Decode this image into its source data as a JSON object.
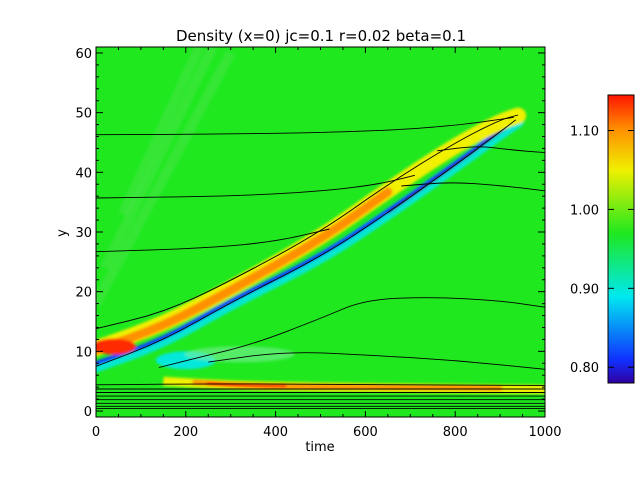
{
  "chart_data": {
    "type": "heatmap",
    "title": "Density (x=0) jc=0.1 r=0.02 beta=0.1",
    "xlabel": "time",
    "ylabel": "y",
    "xlim": [
      0,
      1000
    ],
    "ylim": [
      -1,
      61
    ],
    "x_ticks": [
      "0",
      "200",
      "400",
      "600",
      "800",
      "1000"
    ],
    "y_ticks": [
      "0",
      "10",
      "20",
      "30",
      "40",
      "50",
      "60"
    ],
    "colorbar": {
      "ticks": [
        "0.80",
        "0.90",
        "1.00",
        "1.10"
      ],
      "tick_values": [
        0.8,
        0.9,
        1.0,
        1.1
      ],
      "range": [
        0.78,
        1.145
      ]
    },
    "background_value": 1.0,
    "features": [
      {
        "name": "high-density-wave",
        "value": 1.1,
        "path": [
          [
            0,
            10.5
          ],
          [
            150,
            14.5
          ],
          [
            300,
            20.5
          ],
          [
            500,
            29
          ],
          [
            650,
            37
          ],
          [
            800,
            44.5
          ],
          [
            900,
            48.5
          ],
          [
            940,
            49.5
          ]
        ]
      },
      {
        "name": "low-density-wake",
        "value": 0.82,
        "path": [
          [
            0,
            8
          ],
          [
            150,
            12
          ],
          [
            300,
            18.5
          ],
          [
            500,
            26
          ],
          [
            650,
            33.5
          ],
          [
            800,
            41.5
          ],
          [
            900,
            47
          ],
          [
            940,
            49
          ]
        ]
      },
      {
        "name": "lower-high-density-band",
        "value": 1.1,
        "path": [
          [
            150,
            5
          ],
          [
            300,
            4.3
          ],
          [
            500,
            4
          ],
          [
            750,
            3.8
          ],
          [
            1000,
            3.6
          ]
        ]
      }
    ],
    "contour_lines": [
      {
        "points": [
          [
            0,
            46.3
          ],
          [
            300,
            46.4
          ],
          [
            600,
            46.8
          ],
          [
            800,
            47.8
          ],
          [
            930,
            49.2
          ]
        ]
      },
      {
        "points": [
          [
            0,
            35.7
          ],
          [
            300,
            36
          ],
          [
            500,
            36.8
          ],
          [
            630,
            38
          ],
          [
            710,
            39.5
          ]
        ]
      },
      {
        "points": [
          [
            0,
            26.7
          ],
          [
            250,
            27.3
          ],
          [
            400,
            28.4
          ],
          [
            520,
            30.5
          ]
        ]
      },
      {
        "points": [
          [
            680,
            37.7
          ],
          [
            790,
            38.4
          ],
          [
            900,
            37.8
          ],
          [
            1000,
            36.9
          ]
        ]
      },
      {
        "points": [
          [
            760,
            43.6
          ],
          [
            850,
            44.5
          ],
          [
            930,
            43.7
          ],
          [
            1000,
            43.3
          ]
        ]
      },
      {
        "points": [
          [
            140,
            7.3
          ],
          [
            230,
            9
          ],
          [
            350,
            11.2
          ],
          [
            500,
            15.5
          ],
          [
            600,
            18.7
          ],
          [
            750,
            19.1
          ],
          [
            900,
            18.5
          ],
          [
            1000,
            17.4
          ]
        ]
      },
      {
        "points": [
          [
            250,
            8.2
          ],
          [
            420,
            10
          ],
          [
            600,
            9.4
          ],
          [
            800,
            8.5
          ],
          [
            1000,
            7
          ]
        ]
      },
      {
        "points": [
          [
            0,
            13.8
          ],
          [
            150,
            16.5
          ],
          [
            300,
            21.8
          ],
          [
            500,
            30
          ],
          [
            650,
            38
          ],
          [
            800,
            45
          ],
          [
            900,
            48.8
          ],
          [
            940,
            49.6
          ]
        ]
      },
      {
        "points": [
          [
            0,
            7.5
          ],
          [
            150,
            11.8
          ],
          [
            300,
            18.2
          ],
          [
            500,
            25.8
          ],
          [
            650,
            33.2
          ],
          [
            800,
            41.2
          ],
          [
            900,
            46.8
          ],
          [
            935,
            48.8
          ]
        ]
      },
      {
        "points": [
          [
            0,
            4.4
          ],
          [
            300,
            4.6
          ],
          [
            600,
            4.4
          ],
          [
            1000,
            4.3
          ]
        ]
      },
      {
        "points": [
          [
            0,
            3.7
          ],
          [
            500,
            3.7
          ],
          [
            1000,
            3.7
          ]
        ]
      },
      {
        "points": [
          [
            0,
            3.1
          ],
          [
            500,
            3.1
          ],
          [
            1000,
            3.1
          ]
        ]
      },
      {
        "points": [
          [
            0,
            2.5
          ],
          [
            500,
            2.5
          ],
          [
            1000,
            2.5
          ]
        ]
      },
      {
        "points": [
          [
            0,
            1.9
          ],
          [
            500,
            1.9
          ],
          [
            1000,
            1.9
          ]
        ]
      },
      {
        "points": [
          [
            0,
            1.3
          ],
          [
            500,
            1.3
          ],
          [
            1000,
            1.3
          ]
        ]
      },
      {
        "points": [
          [
            0,
            0.8
          ],
          [
            500,
            0.8
          ],
          [
            1000,
            0.8
          ]
        ]
      },
      {
        "points": [
          [
            0,
            0.4
          ],
          [
            500,
            0.4
          ],
          [
            1000,
            0.4
          ]
        ]
      }
    ],
    "colors": {
      "background": "#1fe81f",
      "red": "#ff2a00",
      "orange": "#ff9000",
      "yellow": "#f0f000",
      "cyan": "#00e8f0",
      "blue": "#1030ff",
      "dark_blue": "#3000a0",
      "contour": "#000000"
    }
  }
}
